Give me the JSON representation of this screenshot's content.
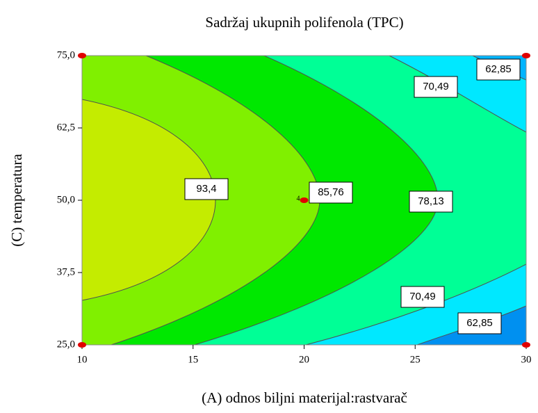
{
  "chart_data": {
    "type": "contour",
    "title": "Sadržaj ukupnih  polifenola  (TPC)",
    "x_label": "(A) odnos biljni  materijal:rastvarač",
    "y_label": "(C) temperatura",
    "xlim": [
      10,
      30
    ],
    "xticks": [
      10,
      15,
      20,
      25,
      30
    ],
    "ylim": [
      25,
      75
    ],
    "yticks": [
      {
        "value": 25,
        "label": "25,0"
      },
      {
        "value": 37.5,
        "label": "37,5"
      },
      {
        "value": 50,
        "label": "50,0"
      },
      {
        "value": 62.5,
        "label": "62,5"
      },
      {
        "value": 75,
        "label": "75,0"
      }
    ],
    "contour_levels": [
      {
        "value": 93.4,
        "label": "93,4"
      },
      {
        "value": 85.76,
        "label": "85,76"
      },
      {
        "value": 78.13,
        "label": "78,13"
      },
      {
        "value": 70.49,
        "label": "70,49"
      },
      {
        "value": 62.85,
        "label": "62,85"
      }
    ],
    "design_points": {
      "x": [
        10,
        10,
        30,
        30,
        20
      ],
      "y": [
        25,
        75,
        25,
        75,
        50
      ],
      "color": "#e00000"
    },
    "center_point_label": "4"
  }
}
